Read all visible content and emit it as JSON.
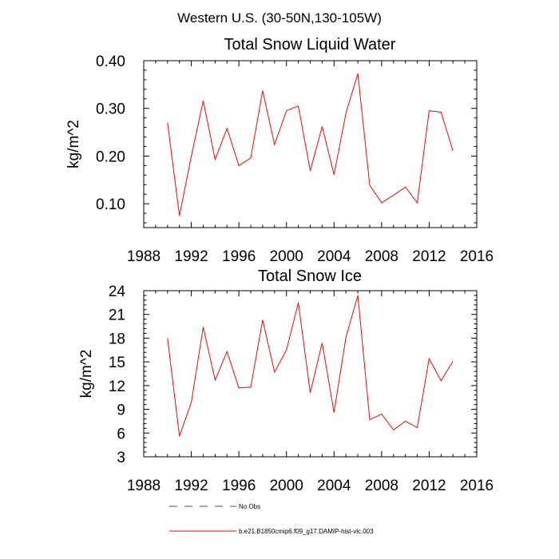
{
  "figure": {
    "title": "Western U.S. (30-50N,130-105W)"
  },
  "chart_data": [
    {
      "type": "line",
      "title": "Total Snow Liquid Water",
      "xlabel": "",
      "ylabel": "kg/m^2",
      "xlim": [
        1988,
        2016
      ],
      "ylim": [
        0.05,
        0.4
      ],
      "xticks": [
        1988,
        1992,
        1996,
        2000,
        2004,
        2008,
        2012,
        2016
      ],
      "xtick_labels": [
        "1988",
        "1992",
        "1996",
        "2000",
        "2004",
        "2008",
        "2012",
        "2016"
      ],
      "yticks": [
        0.1,
        0.2,
        0.3,
        0.4
      ],
      "ytick_labels": [
        "0.10",
        "0.20",
        "0.30",
        "0.40"
      ],
      "grid": false,
      "series": [
        {
          "name": "b.e21.B1850cmip6.f09_g17.DAMIP-hist-vlc.003",
          "color": "#ff0000",
          "x": [
            1990,
            1991,
            1992,
            1993,
            1994,
            1995,
            1996,
            1997,
            1998,
            1999,
            2000,
            2001,
            2002,
            2003,
            2004,
            2005,
            2006,
            2007,
            2008,
            2009,
            2010,
            2011,
            2012,
            2013,
            2014
          ],
          "y": [
            0.27,
            0.075,
            0.2,
            0.316,
            0.193,
            0.258,
            0.18,
            0.196,
            0.337,
            0.224,
            0.295,
            0.305,
            0.169,
            0.262,
            0.161,
            0.29,
            0.373,
            0.139,
            0.102,
            0.118,
            0.135,
            0.102,
            0.295,
            0.292,
            0.211
          ]
        }
      ]
    },
    {
      "type": "line",
      "title": "Total Snow Ice",
      "xlabel": "",
      "ylabel": "kg/m^2",
      "xlim": [
        1988,
        2016
      ],
      "ylim": [
        3,
        24
      ],
      "xticks": [
        1988,
        1992,
        1996,
        2000,
        2004,
        2008,
        2012,
        2016
      ],
      "xtick_labels": [
        "1988",
        "1992",
        "1996",
        "2000",
        "2004",
        "2008",
        "2012",
        "2016"
      ],
      "yticks": [
        3,
        6,
        9,
        12,
        15,
        18,
        21,
        24
      ],
      "ytick_labels": [
        "3",
        "6",
        "9",
        "12",
        "15",
        "18",
        "21",
        "24"
      ],
      "grid": false,
      "series": [
        {
          "name": "b.e21.B1850cmip6.f09_g17.DAMIP-hist-vlc.003",
          "color": "#ff0000",
          "x": [
            1990,
            1991,
            1992,
            1993,
            1994,
            1995,
            1996,
            1997,
            1998,
            1999,
            2000,
            2001,
            2002,
            2003,
            2004,
            2005,
            2006,
            2007,
            2008,
            2009,
            2010,
            2011,
            2012,
            2013,
            2014
          ],
          "y": [
            18.0,
            5.6,
            9.9,
            19.4,
            12.7,
            16.3,
            11.7,
            11.8,
            20.3,
            13.7,
            16.5,
            22.5,
            11.1,
            17.4,
            8.6,
            18.1,
            23.4,
            7.7,
            8.4,
            6.4,
            7.5,
            6.7,
            15.4,
            12.6,
            15.1
          ]
        }
      ]
    }
  ],
  "legend": {
    "placement": "bottom-center",
    "items": [
      {
        "label": "No Obs",
        "color": "#4444aa",
        "style": "dashed"
      },
      {
        "label": "b.e21.B1850cmip6.f09_g17.DAMIP-hist-vlc.003",
        "color": "#ff0000",
        "style": "solid"
      }
    ]
  }
}
